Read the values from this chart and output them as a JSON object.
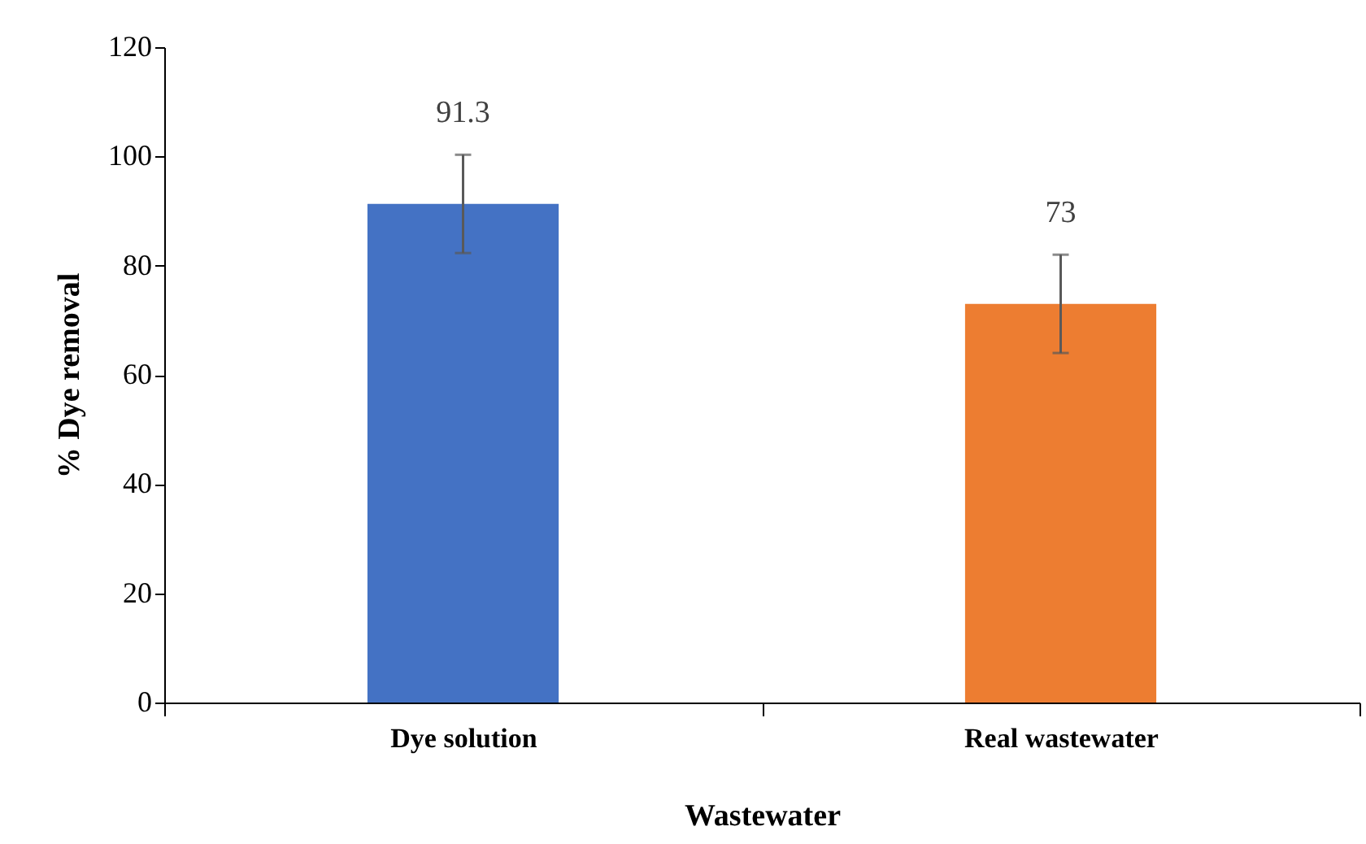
{
  "chart_data": {
    "type": "bar",
    "xlabel": "Wastewater",
    "ylabel": "% Dye removal",
    "categories": [
      "Dye solution",
      "Real wastewater"
    ],
    "values": [
      91.3,
      73
    ],
    "colors": [
      "#4472c4",
      "#ed7d31"
    ],
    "errors": [
      9,
      9
    ],
    "data_labels": true,
    "ylim": [
      0,
      120
    ],
    "yticks": [
      0,
      20,
      40,
      60,
      80,
      100,
      120
    ],
    "grid": false
  }
}
